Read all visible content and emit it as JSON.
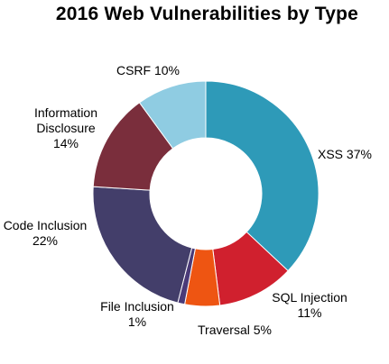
{
  "chart_data": {
    "type": "pie",
    "title": "2016 Web Vulnerabilities by Type",
    "slices": [
      {
        "name": "XSS",
        "value": 37,
        "label_lines": [
          "XSS 37%"
        ],
        "color": "#2E9AB8"
      },
      {
        "name": "SQL Injection",
        "value": 11,
        "label_lines": [
          "SQL Injection",
          "11%"
        ],
        "color": "#D0202E"
      },
      {
        "name": "Traversal",
        "value": 5,
        "label_lines": [
          "Traversal 5%"
        ],
        "color": "#EE5512"
      },
      {
        "name": "File Inclusion",
        "value": 1,
        "label_lines": [
          "File Inclusion",
          "1%"
        ],
        "color": "#4A3A78"
      },
      {
        "name": "Code Inclusion",
        "value": 22,
        "label_lines": [
          "Code Inclusion",
          "22%"
        ],
        "color": "#433E6A"
      },
      {
        "name": "Information Disclosure",
        "value": 14,
        "label_lines": [
          "Information",
          "Disclosure",
          "14%"
        ],
        "color": "#7A2E3C"
      },
      {
        "name": "CSRF",
        "value": 10,
        "label_lines": [
          "CSRF 10%"
        ],
        "color": "#8FCCE2"
      }
    ]
  }
}
